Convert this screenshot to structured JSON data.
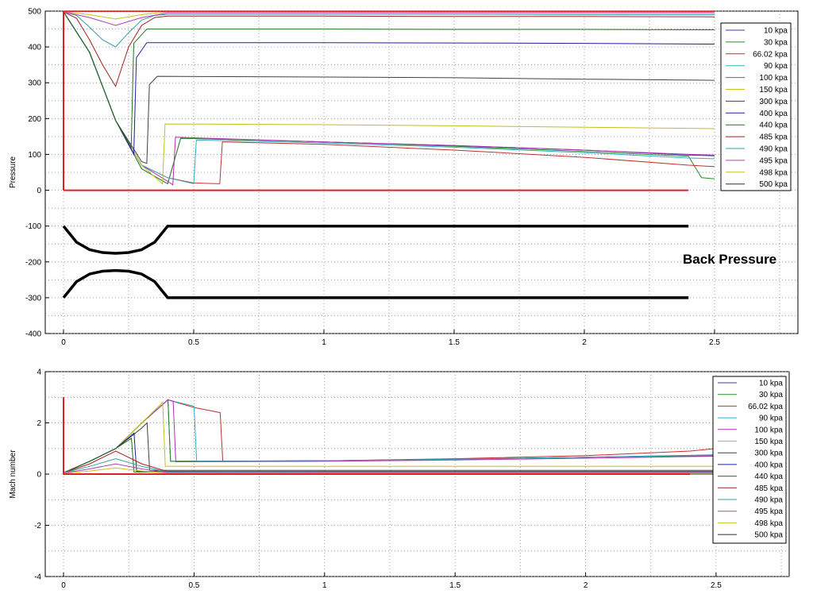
{
  "chart_data": [
    {
      "type": "line",
      "ylabel": "Pressure",
      "xlim": [
        -0.07,
        2.82
      ],
      "ylim": [
        -400,
        500
      ],
      "xticks": [
        0,
        0.5,
        1,
        1.5,
        2,
        2.5
      ],
      "xtick_labels": [
        "0",
        "0.5",
        "1",
        "1.5",
        "2",
        "2.5"
      ],
      "yticks": [
        -400,
        -300,
        -200,
        -100,
        0,
        100,
        200,
        300,
        400,
        500
      ],
      "ytick_labels": [
        "-400",
        "-300",
        "-200",
        "-100",
        "0",
        "100",
        "200",
        "300",
        "400",
        "500"
      ],
      "grid": true,
      "legend_position": "top-right",
      "annotation": {
        "text": "Back Pressure",
        "x": 2.5,
        "y": -205
      },
      "series": [
        {
          "name": "10 kpa",
          "color": "#3a3aa8",
          "x": [
            0,
            0.1,
            0.2,
            0.3,
            0.4,
            0.45,
            1.0,
            1.5,
            2.0,
            2.4,
            2.5
          ],
          "y": [
            498,
            385,
            195,
            60,
            18,
            145,
            135,
            125,
            112,
            98,
            96
          ]
        },
        {
          "name": "30 kpa",
          "color": "#2a8a2a",
          "x": [
            0,
            0.1,
            0.2,
            0.3,
            0.4,
            0.45,
            1.0,
            1.5,
            2.0,
            2.4,
            2.45,
            2.5
          ],
          "y": [
            498,
            385,
            195,
            60,
            18,
            145,
            135,
            123,
            108,
            95,
            35,
            32
          ]
        },
        {
          "name": "66.02 kpa",
          "color": "#c03030",
          "x": [
            0,
            0.1,
            0.2,
            0.3,
            0.4,
            0.5,
            0.6,
            0.61,
            1.0,
            1.5,
            2.0,
            2.4,
            2.5
          ],
          "y": [
            498,
            385,
            195,
            70,
            35,
            20,
            18,
            135,
            128,
            112,
            92,
            70,
            66
          ]
        },
        {
          "name": "90 kpa",
          "color": "#30b0c0",
          "x": [
            0,
            0.1,
            0.2,
            0.3,
            0.4,
            0.5,
            0.51,
            1.0,
            1.5,
            2.0,
            2.4,
            2.5
          ],
          "y": [
            498,
            385,
            195,
            70,
            35,
            18,
            140,
            132,
            120,
            105,
            90,
            88
          ]
        },
        {
          "name": "100 kpa",
          "color": "#b030b0",
          "x": [
            0,
            0.1,
            0.2,
            0.3,
            0.4,
            0.42,
            0.43,
            1.0,
            1.5,
            2.0,
            2.4,
            2.5
          ],
          "y": [
            498,
            385,
            195,
            70,
            25,
            15,
            148,
            135,
            125,
            112,
            100,
            98
          ]
        },
        {
          "name": "150 kpa",
          "color": "#c0c020",
          "x": [
            0,
            0.1,
            0.2,
            0.3,
            0.38,
            0.39,
            1.0,
            1.5,
            2.0,
            2.5
          ],
          "y": [
            498,
            385,
            195,
            70,
            18,
            185,
            183,
            180,
            176,
            172
          ]
        },
        {
          "name": "300 kpa",
          "color": "#404040",
          "x": [
            0,
            0.1,
            0.2,
            0.3,
            0.32,
            0.33,
            0.36,
            1.0,
            1.5,
            2.0,
            2.5
          ],
          "y": [
            498,
            385,
            195,
            80,
            75,
            295,
            318,
            316,
            314,
            310,
            307
          ]
        },
        {
          "name": "400 kpa",
          "color": "#2020a0",
          "x": [
            0,
            0.1,
            0.2,
            0.27,
            0.28,
            0.32,
            1.0,
            1.5,
            2.0,
            2.5
          ],
          "y": [
            498,
            385,
            195,
            100,
            370,
            412,
            412,
            411,
            410,
            408
          ]
        },
        {
          "name": "440 kpa",
          "color": "#207020",
          "x": [
            0,
            0.1,
            0.2,
            0.26,
            0.27,
            0.32,
            1.0,
            1.5,
            2.0,
            2.5
          ],
          "y": [
            498,
            385,
            195,
            120,
            410,
            450,
            450,
            449,
            449,
            448
          ]
        },
        {
          "name": "485 kpa",
          "color": "#a02020",
          "x": [
            0,
            0.05,
            0.1,
            0.15,
            0.2,
            0.25,
            0.3,
            0.35,
            0.4,
            1.0,
            1.5,
            2.0,
            2.5
          ],
          "y": [
            498,
            480,
            420,
            350,
            290,
            400,
            460,
            482,
            486,
            486,
            485,
            485,
            484
          ]
        },
        {
          "name": "490 kpa",
          "color": "#30a0a0",
          "x": [
            0,
            0.05,
            0.1,
            0.15,
            0.2,
            0.25,
            0.3,
            0.35,
            0.4,
            1.0,
            1.5,
            2.0,
            2.5
          ],
          "y": [
            498,
            488,
            455,
            420,
            400,
            440,
            475,
            488,
            491,
            491,
            491,
            490,
            490
          ]
        },
        {
          "name": "495 kpa",
          "color": "#b040b0",
          "x": [
            0,
            0.1,
            0.2,
            0.3,
            0.4,
            1.0,
            1.5,
            2.0,
            2.5
          ],
          "y": [
            498,
            482,
            460,
            482,
            495,
            495,
            495,
            495,
            495
          ]
        },
        {
          "name": "498 kpa",
          "color": "#c8c020",
          "x": [
            0,
            0.1,
            0.2,
            0.3,
            0.4,
            1.0,
            1.5,
            2.0,
            2.5
          ],
          "y": [
            499,
            490,
            478,
            490,
            498,
            498,
            498,
            498,
            498
          ]
        },
        {
          "name": "500 kpa",
          "color": "#303030",
          "x": [
            0,
            2.5
          ],
          "y": [
            500,
            500
          ]
        }
      ],
      "extra_lines": [
        {
          "name": "inlet-pressure-line",
          "color": "#e02020",
          "x": [
            0,
            0,
            2.5
          ],
          "y": [
            0,
            500,
            500
          ]
        },
        {
          "name": "zero-pressure-line",
          "color": "#e02020",
          "x": [
            0,
            2.4
          ],
          "y": [
            0,
            0
          ]
        },
        {
          "name": "nozzle-upper-wall",
          "color": "#000000",
          "x": [
            0,
            0.05,
            0.1,
            0.15,
            0.2,
            0.25,
            0.3,
            0.35,
            0.4,
            2.4
          ],
          "y": [
            -100,
            -145,
            -166,
            -174,
            -176,
            -174,
            -166,
            -145,
            -100,
            -100
          ]
        },
        {
          "name": "nozzle-lower-wall",
          "color": "#000000",
          "x": [
            0,
            0.05,
            0.1,
            0.15,
            0.2,
            0.25,
            0.3,
            0.35,
            0.4,
            2.4
          ],
          "y": [
            -300,
            -255,
            -234,
            -226,
            -224,
            -226,
            -234,
            -255,
            -300,
            -300
          ]
        }
      ]
    },
    {
      "type": "line",
      "ylabel": "Mach number",
      "xlim": [
        -0.07,
        2.78
      ],
      "ylim": [
        -4,
        4
      ],
      "xticks": [
        0,
        0.5,
        1,
        1.5,
        2,
        2.5
      ],
      "xtick_labels": [
        "0",
        "0.5",
        "1",
        "1.5",
        "2",
        "2.5"
      ],
      "yticks": [
        -4,
        -2,
        0,
        2,
        4
      ],
      "ytick_labels": [
        "-4",
        "-2",
        "0",
        "2",
        "4"
      ],
      "grid": true,
      "legend_position": "top-right",
      "series": [
        {
          "name": "10 kpa",
          "color": "#3a3aa8",
          "x": [
            0,
            0.1,
            0.2,
            0.3,
            0.4,
            0.41,
            1.0,
            1.5,
            2.0,
            2.5
          ],
          "y": [
            0.05,
            0.5,
            1.0,
            2.0,
            2.9,
            0.5,
            0.52,
            0.58,
            0.66,
            0.75
          ]
        },
        {
          "name": "30 kpa",
          "color": "#2a8a2a",
          "x": [
            0,
            0.1,
            0.2,
            0.3,
            0.4,
            0.41,
            1.0,
            1.5,
            2.0,
            2.5
          ],
          "y": [
            0.05,
            0.5,
            1.0,
            2.0,
            2.9,
            0.5,
            0.52,
            0.58,
            0.66,
            0.72
          ]
        },
        {
          "name": "66.02 kpa",
          "color": "#c03030",
          "x": [
            0,
            0.1,
            0.2,
            0.3,
            0.4,
            0.5,
            0.6,
            0.61,
            1.0,
            1.5,
            2.0,
            2.4,
            2.5
          ],
          "y": [
            0.05,
            0.5,
            1.0,
            2.0,
            2.9,
            2.6,
            2.4,
            0.5,
            0.52,
            0.6,
            0.72,
            0.9,
            1.0
          ]
        },
        {
          "name": "90 kpa",
          "color": "#30b0c0",
          "x": [
            0,
            0.1,
            0.2,
            0.3,
            0.4,
            0.5,
            0.51,
            1.0,
            1.5,
            2.0,
            2.5
          ],
          "y": [
            0.05,
            0.5,
            1.0,
            2.0,
            2.9,
            2.65,
            0.5,
            0.52,
            0.58,
            0.66,
            0.74
          ]
        },
        {
          "name": "100 kpa",
          "color": "#b030b0",
          "x": [
            0,
            0.1,
            0.2,
            0.3,
            0.4,
            0.42,
            0.43,
            1.0,
            1.5,
            2.0,
            2.5
          ],
          "y": [
            0.05,
            0.5,
            1.0,
            2.0,
            2.9,
            2.85,
            0.48,
            0.5,
            0.55,
            0.62,
            0.7
          ]
        },
        {
          "name": "150 kpa",
          "color": "#c0c020",
          "x": [
            0,
            0.1,
            0.2,
            0.3,
            0.38,
            0.39,
            1.0,
            1.5,
            2.0,
            2.5
          ],
          "y": [
            0.05,
            0.5,
            1.0,
            2.0,
            2.8,
            0.3,
            0.3,
            0.3,
            0.3,
            0.3
          ]
        },
        {
          "name": "300 kpa",
          "color": "#404040",
          "x": [
            0,
            0.1,
            0.2,
            0.3,
            0.32,
            0.33,
            1.0,
            1.5,
            2.0,
            2.5
          ],
          "y": [
            0.05,
            0.5,
            1.0,
            1.8,
            2.0,
            0.15,
            0.15,
            0.15,
            0.15,
            0.15
          ]
        },
        {
          "name": "400 kpa",
          "color": "#2020a0",
          "x": [
            0,
            0.1,
            0.2,
            0.27,
            0.28,
            1.0,
            1.5,
            2.0,
            2.5
          ],
          "y": [
            0.05,
            0.5,
            1.0,
            1.6,
            0.1,
            0.1,
            0.1,
            0.1,
            0.1
          ]
        },
        {
          "name": "440 kpa",
          "color": "#207020",
          "x": [
            0,
            0.1,
            0.2,
            0.26,
            0.27,
            1.0,
            1.5,
            2.0,
            2.5
          ],
          "y": [
            0.05,
            0.5,
            1.0,
            1.4,
            0.08,
            0.08,
            0.08,
            0.08,
            0.08
          ]
        },
        {
          "name": "485 kpa",
          "color": "#a02020",
          "x": [
            0,
            0.1,
            0.2,
            0.3,
            0.4,
            1.0,
            1.5,
            2.0,
            2.5
          ],
          "y": [
            0.05,
            0.4,
            0.9,
            0.4,
            0.1,
            0.08,
            0.08,
            0.08,
            0.08
          ]
        },
        {
          "name": "490 kpa",
          "color": "#30a0a0",
          "x": [
            0,
            0.1,
            0.2,
            0.3,
            0.4,
            1.0,
            1.5,
            2.0,
            2.5
          ],
          "y": [
            0.05,
            0.3,
            0.6,
            0.3,
            0.08,
            0.07,
            0.07,
            0.07,
            0.07
          ]
        },
        {
          "name": "495 kpa",
          "color": "#b040b0",
          "x": [
            0,
            0.1,
            0.2,
            0.3,
            0.4,
            1.0,
            2.5
          ],
          "y": [
            0.04,
            0.2,
            0.4,
            0.2,
            0.06,
            0.06,
            0.06
          ]
        },
        {
          "name": "498 kpa",
          "color": "#c8c020",
          "x": [
            0,
            0.1,
            0.2,
            0.3,
            0.4,
            1.0,
            2.5
          ],
          "y": [
            0.03,
            0.12,
            0.24,
            0.12,
            0.04,
            0.04,
            0.04
          ]
        },
        {
          "name": "500 kpa",
          "color": "#303030",
          "x": [
            0,
            2.5
          ],
          "y": [
            0,
            0
          ]
        }
      ],
      "extra_lines": [
        {
          "name": "mach-start-line",
          "color": "#e02020",
          "x": [
            0,
            0,
            2.4
          ],
          "y": [
            3,
            0,
            0
          ]
        }
      ]
    }
  ]
}
